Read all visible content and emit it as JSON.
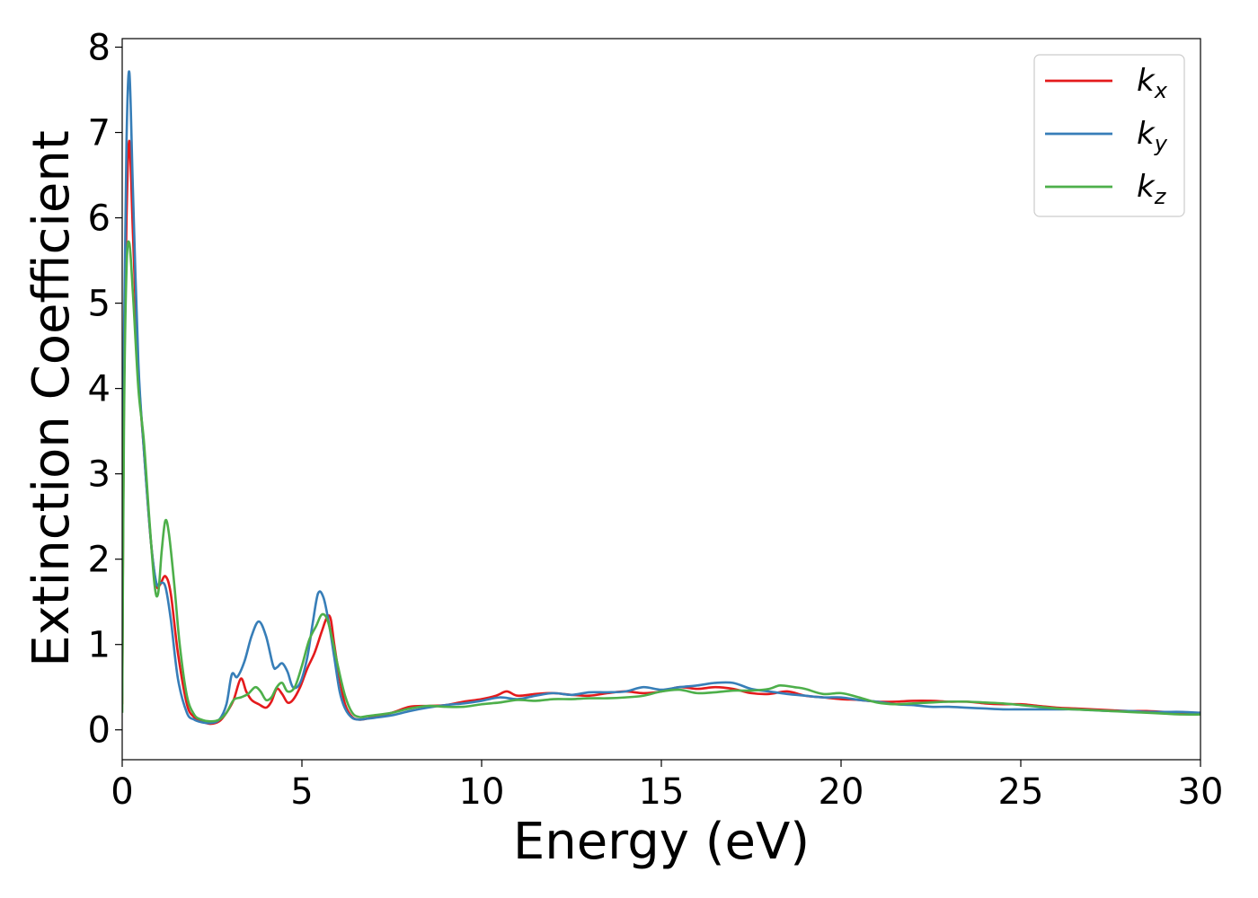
{
  "chart_data": {
    "type": "line",
    "title": "",
    "xlabel": "Energy (eV)",
    "ylabel": "Extinction Coefficient",
    "xlim": [
      0,
      30
    ],
    "ylim": [
      -0.35,
      8.1
    ],
    "xticks": [
      0,
      5,
      10,
      15,
      20,
      25,
      30
    ],
    "xtick_labels": [
      "0",
      "5",
      "10",
      "15",
      "20",
      "25",
      "30"
    ],
    "yticks": [
      0,
      1,
      2,
      3,
      4,
      5,
      6,
      7,
      8
    ],
    "ytick_labels": [
      "0",
      "1",
      "2",
      "3",
      "4",
      "5",
      "6",
      "7",
      "8"
    ],
    "grid": false,
    "legend_position": "top-right",
    "series": [
      {
        "name": "k_x",
        "legend": {
          "base": "k",
          "sub": "x"
        },
        "color": "#e41a1c",
        "x": [
          0,
          0.05,
          0.12,
          0.2,
          0.3,
          0.45,
          0.6,
          0.8,
          0.95,
          1.05,
          1.2,
          1.35,
          1.55,
          1.8,
          2.0,
          2.2,
          2.45,
          2.7,
          2.9,
          3.1,
          3.3,
          3.45,
          3.6,
          3.8,
          4.0,
          4.15,
          4.3,
          4.45,
          4.6,
          4.75,
          4.95,
          5.15,
          5.35,
          5.55,
          5.7,
          5.8,
          5.9,
          6.05,
          6.2,
          6.4,
          6.6,
          6.8,
          7.0,
          7.5,
          8.0,
          8.5,
          9.0,
          9.5,
          10.0,
          10.4,
          10.7,
          11.0,
          11.5,
          12.0,
          12.5,
          13.0,
          13.5,
          14.0,
          14.5,
          15.0,
          15.5,
          16.0,
          16.5,
          17.0,
          17.5,
          18.0,
          18.5,
          19.0,
          19.5,
          20.0,
          20.5,
          21.0,
          21.5,
          22.0,
          22.5,
          23.0,
          23.5,
          24.0,
          24.5,
          25.0,
          25.5,
          26.0,
          26.5,
          27.0,
          27.5,
          28.0,
          28.5,
          29.0,
          29.5,
          30.0
        ],
        "y": [
          0.3,
          4.0,
          6.0,
          6.9,
          5.8,
          4.2,
          3.3,
          2.2,
          1.7,
          1.7,
          1.8,
          1.6,
          0.9,
          0.3,
          0.15,
          0.1,
          0.07,
          0.1,
          0.2,
          0.35,
          0.6,
          0.45,
          0.35,
          0.3,
          0.26,
          0.33,
          0.48,
          0.42,
          0.32,
          0.35,
          0.5,
          0.72,
          0.9,
          1.15,
          1.32,
          1.3,
          1.0,
          0.6,
          0.3,
          0.15,
          0.12,
          0.13,
          0.15,
          0.2,
          0.27,
          0.28,
          0.29,
          0.33,
          0.36,
          0.4,
          0.45,
          0.4,
          0.42,
          0.43,
          0.41,
          0.4,
          0.43,
          0.45,
          0.43,
          0.45,
          0.5,
          0.48,
          0.5,
          0.48,
          0.43,
          0.42,
          0.45,
          0.4,
          0.38,
          0.36,
          0.35,
          0.33,
          0.33,
          0.34,
          0.34,
          0.33,
          0.33,
          0.31,
          0.3,
          0.3,
          0.28,
          0.26,
          0.25,
          0.24,
          0.23,
          0.22,
          0.22,
          0.21,
          0.2,
          0.2
        ]
      },
      {
        "name": "k_y",
        "legend": {
          "base": "k",
          "sub": "y"
        },
        "color": "#377eb8",
        "x": [
          0,
          0.05,
          0.12,
          0.2,
          0.3,
          0.45,
          0.6,
          0.8,
          0.95,
          1.05,
          1.2,
          1.35,
          1.55,
          1.8,
          2.0,
          2.2,
          2.45,
          2.7,
          2.9,
          3.05,
          3.2,
          3.4,
          3.6,
          3.8,
          4.0,
          4.2,
          4.3,
          4.45,
          4.6,
          4.75,
          4.95,
          5.15,
          5.3,
          5.45,
          5.6,
          5.75,
          5.9,
          6.05,
          6.2,
          6.4,
          6.6,
          6.8,
          7.0,
          7.5,
          8.0,
          8.5,
          9.0,
          9.5,
          10.0,
          10.5,
          11.0,
          11.5,
          12.0,
          12.5,
          13.0,
          13.5,
          14.0,
          14.5,
          15.0,
          15.5,
          16.0,
          16.5,
          17.0,
          17.5,
          18.0,
          18.5,
          19.0,
          19.5,
          20.0,
          20.5,
          21.0,
          21.5,
          22.0,
          22.5,
          23.0,
          23.5,
          24.0,
          24.5,
          25.0,
          25.5,
          26.0,
          26.5,
          27.0,
          27.5,
          28.0,
          28.5,
          29.0,
          29.5,
          30.0
        ],
        "y": [
          0.4,
          4.6,
          6.9,
          7.7,
          6.3,
          4.3,
          3.3,
          2.2,
          1.72,
          1.72,
          1.68,
          1.3,
          0.6,
          0.2,
          0.12,
          0.09,
          0.08,
          0.12,
          0.3,
          0.65,
          0.62,
          0.8,
          1.1,
          1.27,
          1.1,
          0.75,
          0.73,
          0.78,
          0.68,
          0.5,
          0.55,
          0.85,
          1.25,
          1.6,
          1.55,
          1.25,
          0.85,
          0.45,
          0.25,
          0.14,
          0.12,
          0.13,
          0.14,
          0.17,
          0.22,
          0.26,
          0.29,
          0.31,
          0.34,
          0.38,
          0.36,
          0.4,
          0.43,
          0.41,
          0.44,
          0.44,
          0.45,
          0.5,
          0.47,
          0.5,
          0.52,
          0.55,
          0.55,
          0.48,
          0.45,
          0.42,
          0.4,
          0.38,
          0.38,
          0.35,
          0.33,
          0.3,
          0.29,
          0.27,
          0.27,
          0.26,
          0.25,
          0.24,
          0.24,
          0.24,
          0.24,
          0.24,
          0.23,
          0.22,
          0.22,
          0.21,
          0.21,
          0.21,
          0.2
        ]
      },
      {
        "name": "k_z",
        "legend": {
          "base": "k",
          "sub": "z"
        },
        "color": "#4daf4a",
        "x": [
          0,
          0.05,
          0.12,
          0.2,
          0.3,
          0.45,
          0.6,
          0.75,
          0.9,
          1.0,
          1.1,
          1.2,
          1.3,
          1.45,
          1.6,
          1.8,
          2.0,
          2.2,
          2.45,
          2.7,
          2.9,
          3.1,
          3.3,
          3.5,
          3.7,
          3.85,
          4.0,
          4.15,
          4.3,
          4.45,
          4.6,
          4.8,
          5.0,
          5.2,
          5.4,
          5.55,
          5.7,
          5.85,
          6.0,
          6.2,
          6.4,
          6.6,
          6.8,
          7.0,
          7.5,
          8.0,
          8.5,
          9.0,
          9.5,
          10.0,
          10.5,
          11.0,
          11.5,
          12.0,
          12.5,
          13.0,
          13.5,
          14.0,
          14.5,
          15.0,
          15.5,
          16.0,
          16.5,
          17.0,
          17.5,
          18.0,
          18.3,
          18.7,
          19.0,
          19.5,
          20.0,
          20.5,
          21.0,
          21.5,
          22.0,
          22.5,
          23.0,
          23.5,
          24.0,
          24.5,
          25.0,
          25.5,
          26.0,
          26.5,
          27.0,
          27.5,
          28.0,
          28.5,
          29.0,
          29.5,
          30.0
        ],
        "y": [
          0.2,
          3.6,
          5.4,
          5.7,
          5.1,
          4.0,
          3.4,
          2.5,
          1.7,
          1.6,
          2.1,
          2.45,
          2.3,
          1.7,
          1.0,
          0.4,
          0.18,
          0.12,
          0.1,
          0.12,
          0.2,
          0.35,
          0.38,
          0.42,
          0.5,
          0.45,
          0.35,
          0.38,
          0.5,
          0.55,
          0.45,
          0.5,
          0.75,
          1.05,
          1.22,
          1.35,
          1.3,
          1.05,
          0.75,
          0.4,
          0.2,
          0.15,
          0.16,
          0.17,
          0.2,
          0.25,
          0.28,
          0.27,
          0.27,
          0.3,
          0.32,
          0.35,
          0.34,
          0.36,
          0.36,
          0.37,
          0.37,
          0.38,
          0.4,
          0.45,
          0.47,
          0.43,
          0.44,
          0.46,
          0.46,
          0.48,
          0.52,
          0.5,
          0.48,
          0.42,
          0.43,
          0.38,
          0.32,
          0.3,
          0.31,
          0.32,
          0.33,
          0.33,
          0.32,
          0.31,
          0.29,
          0.27,
          0.25,
          0.24,
          0.23,
          0.22,
          0.21,
          0.2,
          0.19,
          0.18,
          0.18
        ]
      }
    ]
  }
}
